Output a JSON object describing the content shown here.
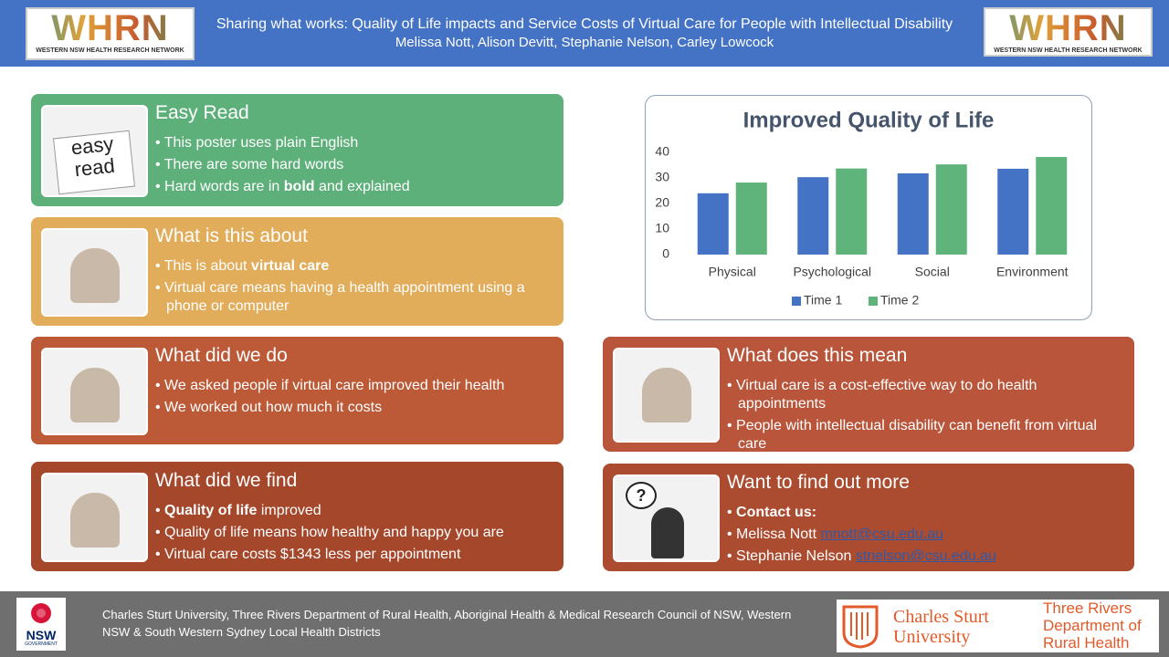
{
  "header": {
    "logo": {
      "name": "WHRN",
      "subtitle": "WESTERN NSW HEALTH RESEARCH NETWORK"
    },
    "title": "Sharing what works: Quality of Life impacts and Service Costs of Virtual Care for People with Intellectual Disability",
    "authors": "Melissa Nott, Alison Devitt, Stephanie Nelson, Carley Lowcock"
  },
  "image_texts": {
    "easy_read": [
      "easy",
      "read"
    ],
    "question": "?"
  },
  "sections": [
    {
      "heading": "Easy Read",
      "bullets": [
        [
          {
            "text": "This poster uses plain English"
          }
        ],
        [
          {
            "text": "There are some hard words"
          }
        ],
        [
          {
            "text": "Hard words are in "
          },
          {
            "text": "bold",
            "bold": true
          },
          {
            "text": " and explained"
          }
        ]
      ]
    },
    {
      "heading": "What is this about",
      "bullets": [
        [
          {
            "text": "This is about "
          },
          {
            "text": "virtual care",
            "bold": true
          }
        ],
        [
          {
            "text": "Virtual care means having a health appointment using a phone or computer"
          }
        ]
      ]
    },
    {
      "heading": "What did we do",
      "bullets": [
        [
          {
            "text": "We asked people if virtual care improved their health"
          }
        ],
        [
          {
            "text": "We worked out how much it costs"
          }
        ]
      ]
    },
    {
      "heading": "What did we find",
      "bullets": [
        [
          {
            "text": "Quality of life",
            "bold": true
          },
          {
            "text": " improved"
          }
        ],
        [
          {
            "text": "Quality of life means how healthy and happy you are"
          }
        ],
        [
          {
            "text": "Virtual care costs $1343 less per appointment"
          }
        ]
      ]
    },
    {
      "heading": "What does this mean",
      "bullets": [
        [
          {
            "text": "Virtual care is a cost-effective way to do health appointments"
          }
        ],
        [
          {
            "text": "People with intellectual disability can benefit from virtual care"
          }
        ]
      ]
    },
    {
      "heading": "Want to find out more",
      "bullets": [
        [
          {
            "text": "Contact us:",
            "bold": true
          }
        ],
        [
          {
            "text": "Melissa Nott "
          },
          {
            "text": "mnott@csu.edu.au",
            "link": true
          }
        ],
        [
          {
            "text": "Stephanie Nelson "
          },
          {
            "text": "stnelson@csu.edu.au",
            "link": true
          }
        ]
      ]
    }
  ],
  "chart_data": {
    "type": "bar",
    "title": "Improved Quality of Life",
    "categories": [
      "Physical",
      "Psychological",
      "Social",
      "Environment"
    ],
    "series": [
      {
        "name": "Time 1",
        "color": "#4472c4",
        "values": [
          24,
          30.3,
          31.8,
          33.6
        ]
      },
      {
        "name": "Time 2",
        "color": "#5eb47a",
        "values": [
          28.2,
          33.7,
          35.3,
          38.2
        ]
      }
    ],
    "ylim": [
      0,
      40
    ],
    "yticks": [
      0,
      10,
      20,
      30,
      40
    ],
    "grid": false,
    "legend": "bottom"
  },
  "footer": {
    "nsw_logo": {
      "name": "NSW",
      "subtitle": "GOVERNMENT"
    },
    "text": "Charles Sturt University, Three Rivers Department of Rural Health, Aboriginal Health & Medical Research Council of NSW, Western NSW & South Western Sydney Local Health Districts",
    "csu": [
      "Charles Sturt",
      "University"
    ],
    "three_rivers": [
      "Three Rivers",
      "Department of",
      "Rural Health"
    ]
  }
}
